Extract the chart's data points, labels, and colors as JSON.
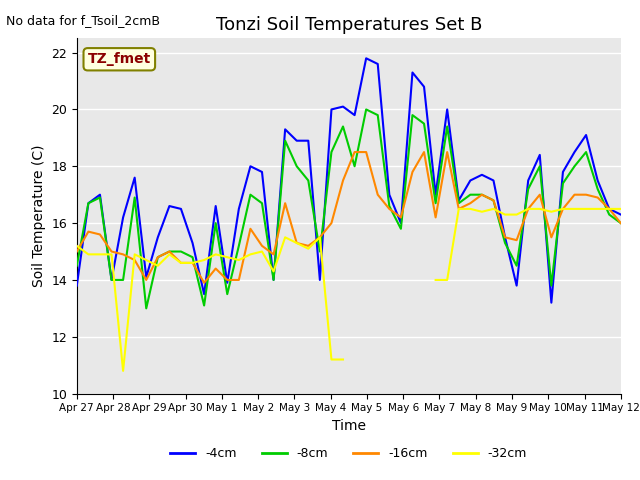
{
  "title": "Tonzi Soil Temperatures Set B",
  "xlabel": "Time",
  "ylabel": "Soil Temperature (C)",
  "no_data_text": "No data for f_Tsoil_2cmB",
  "annotation_text": "TZ_fmet",
  "ylim": [
    10,
    22.5
  ],
  "background_color": "#e8e8e8",
  "grid_color": "white",
  "colors": {
    "-4cm": "#0000ff",
    "-8cm": "#00cc00",
    "-16cm": "#ff8800",
    "-32cm": "#ffff00"
  },
  "x_tick_labels": [
    "Apr 27",
    "Apr 28",
    "Apr 29",
    "Apr 30",
    "May 1",
    "May 2",
    "May 3",
    "May 4",
    "May 5",
    "May 6",
    "May 7",
    "May 8",
    "May 9",
    "May 10",
    "May 11",
    "May 12"
  ],
  "series": {
    "-4cm": [
      13.8,
      16.7,
      17.0,
      14.0,
      16.2,
      17.6,
      14.1,
      15.5,
      16.6,
      16.5,
      15.3,
      13.5,
      16.6,
      13.9,
      16.5,
      18.0,
      17.8,
      14.0,
      19.3,
      18.9,
      18.9,
      14.0,
      20.0,
      20.1,
      19.8,
      21.8,
      21.6,
      17.0,
      16.0,
      21.3,
      20.8,
      17.0,
      20.0,
      16.8,
      17.5,
      17.7,
      17.5,
      15.5,
      13.8,
      17.5,
      18.4,
      13.2,
      17.8,
      18.5,
      19.1,
      17.5,
      16.5,
      16.3
    ],
    "-8cm": [
      14.5,
      16.7,
      16.9,
      14.0,
      14.0,
      16.9,
      13.0,
      14.8,
      15.0,
      15.0,
      14.8,
      13.1,
      16.0,
      13.5,
      15.2,
      17.0,
      16.7,
      14.0,
      18.9,
      18.0,
      17.5,
      15.0,
      18.5,
      19.4,
      18.0,
      20.0,
      19.8,
      16.6,
      15.8,
      19.8,
      19.5,
      16.7,
      19.4,
      16.7,
      17.0,
      17.0,
      16.8,
      15.3,
      14.5,
      17.2,
      18.0,
      13.8,
      17.4,
      18.0,
      18.5,
      17.2,
      16.3,
      16.0
    ],
    "-16cm": [
      15.0,
      15.7,
      15.6,
      15.0,
      14.9,
      14.7,
      14.0,
      14.8,
      15.0,
      14.6,
      14.6,
      13.9,
      14.4,
      14.0,
      14.0,
      15.8,
      15.2,
      14.9,
      16.7,
      15.3,
      15.2,
      15.5,
      16.0,
      17.5,
      18.5,
      18.5,
      17.0,
      16.5,
      16.2,
      17.8,
      18.5,
      16.2,
      18.5,
      16.5,
      16.7,
      17.0,
      16.8,
      15.5,
      15.4,
      16.5,
      17.0,
      15.5,
      16.5,
      17.0,
      17.0,
      16.9,
      16.5,
      16.0
    ],
    "-32cm": [
      15.2,
      14.9,
      14.9,
      14.9,
      10.8,
      14.9,
      14.7,
      14.5,
      14.9,
      14.6,
      14.6,
      14.7,
      14.9,
      14.8,
      14.7,
      14.9,
      15.0,
      14.3,
      15.5,
      15.3,
      15.1,
      15.5,
      11.2,
      11.2,
      null,
      null,
      null,
      null,
      null,
      null,
      null,
      14.0,
      14.0,
      16.5,
      16.5,
      16.4,
      16.5,
      16.3,
      16.3,
      16.5,
      16.5,
      16.4,
      16.5,
      16.5,
      16.5,
      16.5,
      16.5,
      16.5
    ]
  }
}
